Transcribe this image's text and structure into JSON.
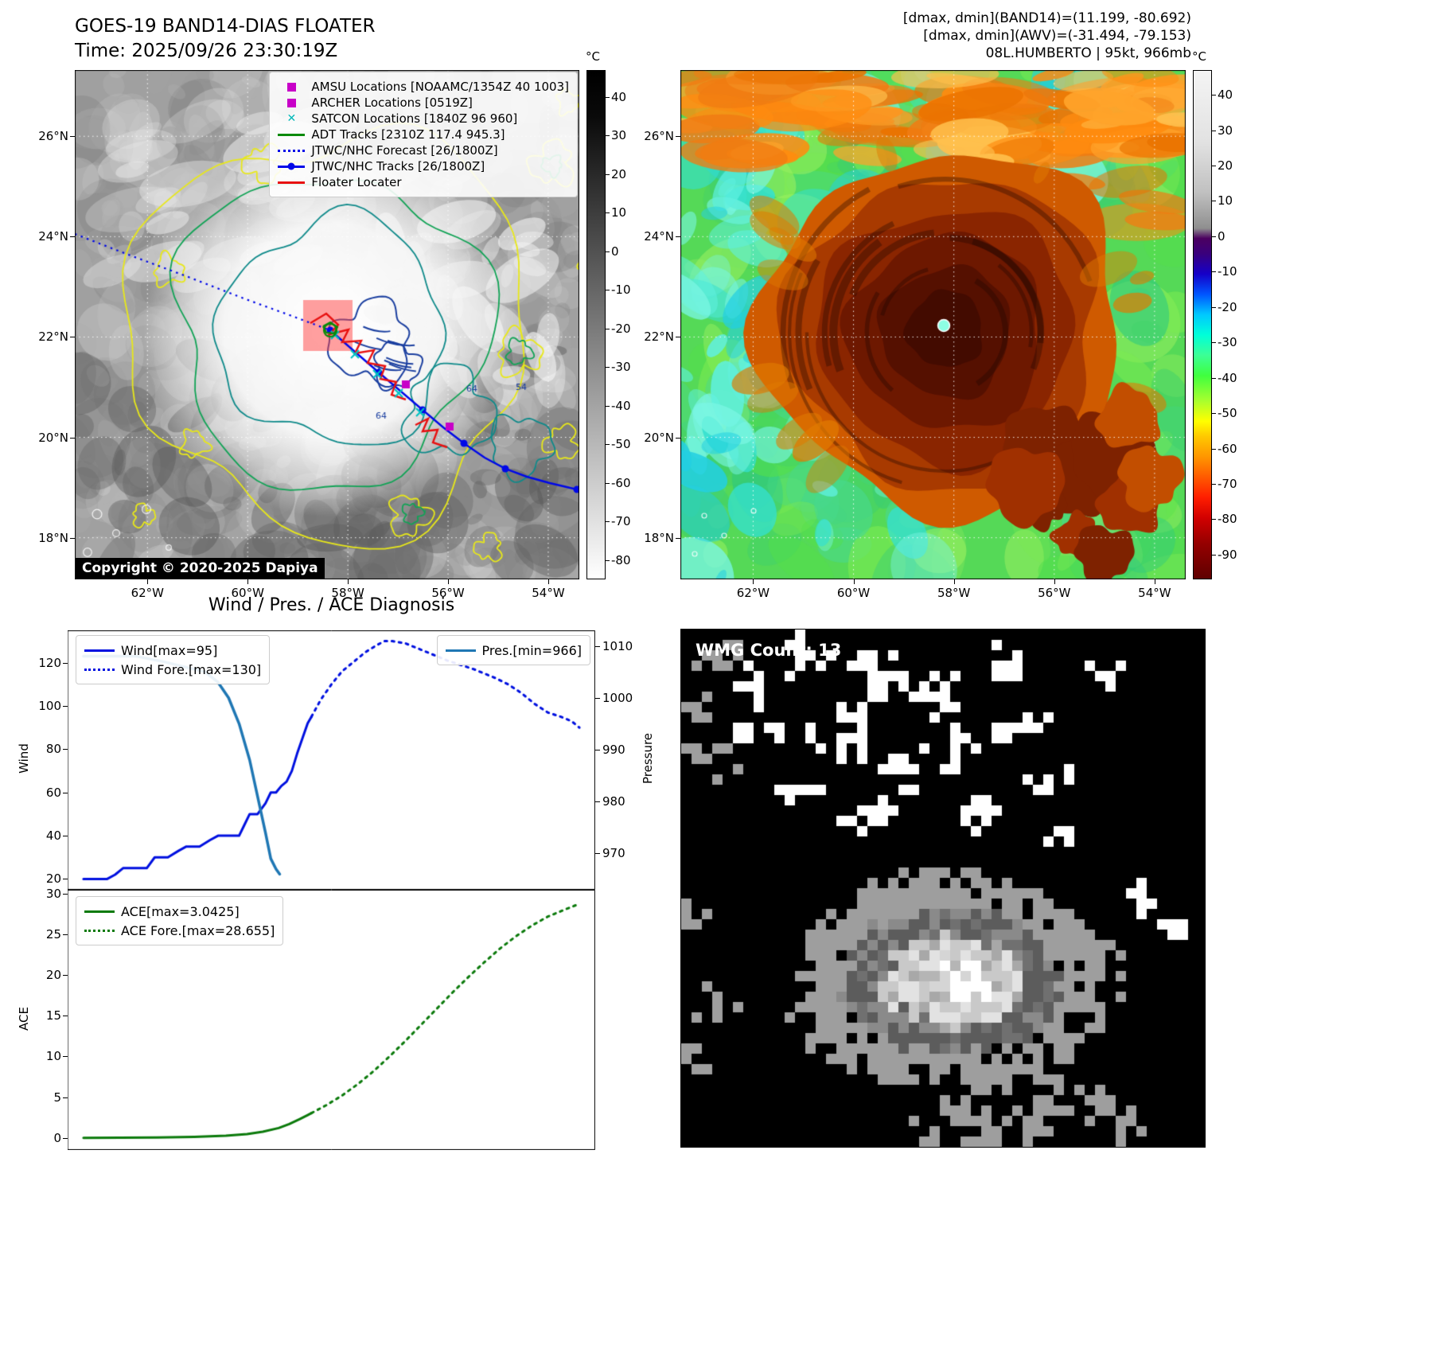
{
  "header_left": {
    "title": "GOES-19 BAND14-DIAS FLOATER",
    "time": "Time: 2025/09/26 23:30:19Z"
  },
  "header_right": {
    "line1": "[dmax, dmin](BAND14)=(11.199, -80.692)",
    "line2": "[dmax, dmin](AWV)=(-31.494, -79.153)",
    "line3": "08L.HUMBERTO | 95kt, 966mb"
  },
  "map_meta": {
    "lat_range": [
      27.32,
      17.17
    ],
    "lon_range": [
      -63.45,
      -53.38
    ],
    "lat_ticks": [
      {
        "label": "26°N",
        "value": 26
      },
      {
        "label": "24°N",
        "value": 24
      },
      {
        "label": "22°N",
        "value": 22
      },
      {
        "label": "20°N",
        "value": 20
      },
      {
        "label": "18°N",
        "value": 18
      }
    ],
    "lon_ticks": [
      {
        "label": "62°W",
        "value": -62
      },
      {
        "label": "60°W",
        "value": -60
      },
      {
        "label": "58°W",
        "value": -58
      },
      {
        "label": "56°W",
        "value": -56
      },
      {
        "label": "54°W",
        "value": -54
      }
    ]
  },
  "map_left": {
    "legend": [
      {
        "label": "AMSU Locations [NOAAMC/1354Z 40 1003]",
        "marker": "square",
        "color": "#c800c8"
      },
      {
        "label": "ARCHER Locations [0519Z]",
        "marker": "square",
        "color": "#c800c8"
      },
      {
        "label": "SATCON Locations [1840Z 96 960]",
        "marker": "x",
        "color": "#00b8b8"
      },
      {
        "label": "ADT Tracks [2310Z 117.4 945.3]",
        "marker": "line",
        "color": "#0a8a0a"
      },
      {
        "label": "JTWC/NHC Forecast [26/1800Z]",
        "marker": "dotted",
        "color": "#0008e8"
      },
      {
        "label": "JTWC/NHC Tracks [26/1800Z]",
        "marker": "line-dot",
        "color": "#0008e8"
      },
      {
        "label": "Floater Locater",
        "marker": "line",
        "color": "#e81111"
      }
    ],
    "contour_labels": [
      "64",
      "54",
      "64"
    ],
    "copyright": "Copyright © 2020-2025 Dapiya",
    "colorbar": {
      "unit": "°C",
      "ticks": [
        40,
        30,
        20,
        10,
        0,
        -10,
        -20,
        -30,
        -40,
        -50,
        -60,
        -70,
        -80
      ],
      "range": [
        -85,
        47
      ]
    }
  },
  "map_right": {
    "colorbar": {
      "unit": "°C",
      "ticks": [
        40,
        30,
        20,
        10,
        0,
        -10,
        -20,
        -30,
        -40,
        -50,
        -60,
        -70,
        -80,
        -90
      ],
      "range": [
        -97,
        47
      ]
    }
  },
  "wmg": {
    "label": "WMG Count: 13"
  },
  "chart_data": [
    {
      "type": "line",
      "title": "Wind / Pres. / ACE Diagnosis",
      "ylabel_left": "Wind",
      "ylabel_right": "Pressure",
      "ylim_left": [
        15,
        135
      ],
      "yticks_left": [
        20,
        40,
        60,
        80,
        100,
        120
      ],
      "ylim_right": [
        963,
        1013
      ],
      "yticks_right": [
        970,
        980,
        990,
        1000,
        1010
      ],
      "xlim": [
        0,
        1
      ],
      "series": [
        {
          "name": "Wind[max=95]",
          "axis": "left",
          "legend": "left",
          "style": "solid",
          "color": "#0010e0",
          "width": 3,
          "x": [
            0.03,
            0.075,
            0.09,
            0.105,
            0.12,
            0.15,
            0.165,
            0.19,
            0.21,
            0.225,
            0.25,
            0.27,
            0.285,
            0.3,
            0.325,
            0.335,
            0.345,
            0.36,
            0.375,
            0.385,
            0.395,
            0.405,
            0.415,
            0.425,
            0.435,
            0.445,
            0.455,
            0.462
          ],
          "y": [
            20,
            20,
            22,
            25,
            25,
            25,
            30,
            30,
            33,
            35,
            35,
            38,
            40,
            40,
            40,
            45,
            50,
            50,
            55,
            60,
            60,
            63,
            65,
            70,
            78,
            85,
            92,
            95
          ]
        },
        {
          "name": "Wind Fore.[max=130]",
          "axis": "left",
          "legend": "left",
          "style": "dotted",
          "color": "#0010e0",
          "width": 3,
          "x": [
            0.462,
            0.48,
            0.5,
            0.52,
            0.545,
            0.565,
            0.585,
            0.6,
            0.615,
            0.64,
            0.66,
            0.68,
            0.7,
            0.72,
            0.745,
            0.77,
            0.79,
            0.81,
            0.835,
            0.86,
            0.885,
            0.91,
            0.935,
            0.955,
            0.97
          ],
          "y": [
            95,
            103,
            110,
            116,
            121,
            125,
            128,
            130,
            130,
            129,
            127,
            125,
            123,
            121,
            119,
            117,
            115,
            113,
            110,
            106,
            101,
            97,
            95,
            93,
            90
          ]
        },
        {
          "name": "Pres.[min=966]",
          "axis": "right",
          "legend": "right",
          "style": "solid",
          "color": "#1f77b4",
          "width": 3.5,
          "x": [
            0.03,
            0.08,
            0.13,
            0.18,
            0.22,
            0.26,
            0.285,
            0.305,
            0.325,
            0.345,
            0.36,
            0.375,
            0.385,
            0.395,
            0.402
          ],
          "y": [
            1008,
            1008,
            1008,
            1007,
            1006,
            1005,
            1003,
            1000,
            995,
            988,
            981,
            974,
            969,
            967,
            966
          ]
        }
      ]
    },
    {
      "type": "line",
      "ylabel_left": "ACE",
      "ylim_left": [
        -1.5,
        30.5
      ],
      "yticks_left": [
        0,
        5,
        10,
        15,
        20,
        25,
        30
      ],
      "xlim": [
        0,
        1
      ],
      "series": [
        {
          "name": "ACE[max=3.0425]",
          "axis": "left",
          "legend": "left",
          "style": "solid",
          "color": "#0b7a0b",
          "width": 3,
          "x": [
            0.03,
            0.1,
            0.17,
            0.24,
            0.3,
            0.34,
            0.37,
            0.4,
            0.42,
            0.44,
            0.455,
            0.462
          ],
          "y": [
            0.0,
            0.02,
            0.05,
            0.12,
            0.25,
            0.45,
            0.75,
            1.2,
            1.7,
            2.3,
            2.8,
            3.04
          ]
        },
        {
          "name": "ACE Fore.[max=28.655]",
          "axis": "left",
          "legend": "left",
          "style": "dotted",
          "color": "#0b7a0b",
          "width": 3,
          "x": [
            0.462,
            0.49,
            0.52,
            0.55,
            0.58,
            0.61,
            0.64,
            0.67,
            0.7,
            0.73,
            0.76,
            0.79,
            0.82,
            0.85,
            0.88,
            0.91,
            0.94,
            0.965
          ],
          "y": [
            3.04,
            4.0,
            5.2,
            6.6,
            8.2,
            10.0,
            11.9,
            13.9,
            15.9,
            17.9,
            19.8,
            21.6,
            23.3,
            24.8,
            26.1,
            27.2,
            28.0,
            28.65
          ]
        }
      ]
    }
  ]
}
